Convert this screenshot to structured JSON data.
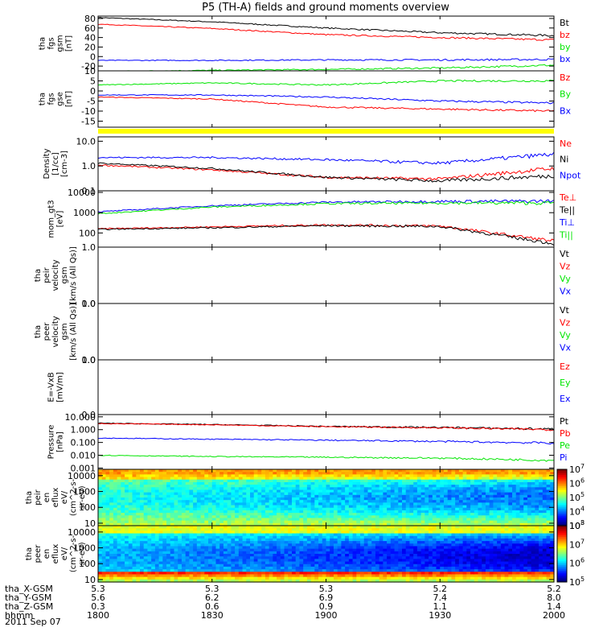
{
  "title": "P5 (TH-A) fields and ground moments overview",
  "date": "2011 Sep 07",
  "colors": {
    "black": "#000000",
    "red": "#ff0000",
    "green": "#00e600",
    "blue": "#0000ff",
    "yellow": "#ffff00"
  },
  "chart_data": [
    {
      "type": "line",
      "id": "fgs_gsm",
      "ylabel_lines": [
        "tha",
        "fgs",
        "gsm",
        "[nT]"
      ],
      "ylim": [
        -30,
        85
      ],
      "yticks": [
        -20,
        0,
        20,
        40,
        60,
        80
      ],
      "ytick_labels": [
        "-20",
        "0",
        "20",
        "40",
        "60",
        "80"
      ],
      "series": [
        {
          "name": "Bt",
          "color": "black",
          "x": [
            1800,
            1830,
            1900,
            1930,
            2000
          ],
          "y": [
            82,
            73,
            60,
            50,
            44
          ]
        },
        {
          "name": "bz",
          "color": "red",
          "x": [
            1800,
            1830,
            1900,
            1930,
            2000
          ],
          "y": [
            68,
            59,
            46,
            40,
            35
          ]
        },
        {
          "name": "by",
          "color": "green",
          "x": [
            1800,
            1830,
            1900,
            1930,
            2000
          ],
          "y": [
            -31,
            -29,
            -27,
            -24,
            -18
          ]
        },
        {
          "name": "bx",
          "color": "blue",
          "x": [
            1800,
            1830,
            1900,
            1930,
            2000
          ],
          "y": [
            -8,
            -8,
            -7,
            -7,
            -6
          ]
        }
      ]
    },
    {
      "type": "line",
      "id": "fgs_gse",
      "ylabel_lines": [
        "tha",
        "fgs",
        "gse",
        "[nT]"
      ],
      "ylim": [
        -18,
        10
      ],
      "yticks": [
        -15,
        -10,
        -5,
        0,
        5,
        10
      ],
      "ytick_labels": [
        "-15",
        "-10",
        "-5",
        "0",
        "5",
        "10"
      ],
      "series": [
        {
          "name": "Bz",
          "color": "red",
          "x": [
            1800,
            1830,
            1900,
            1930,
            2000
          ],
          "y": [
            -3,
            -4,
            -8,
            -9,
            -10
          ]
        },
        {
          "name": "By",
          "color": "green",
          "x": [
            1800,
            1830,
            1900,
            1930,
            2000
          ],
          "y": [
            3,
            4,
            3,
            5,
            5
          ]
        },
        {
          "name": "Bx",
          "color": "blue",
          "x": [
            1800,
            1830,
            1900,
            1930,
            2000
          ],
          "y": [
            -2,
            -2,
            -3,
            -5,
            -6
          ]
        }
      ]
    },
    {
      "type": "line",
      "id": "density",
      "yscale": "log",
      "ylabel_lines": [
        "Density",
        "[1/cc]",
        "[cm-3]"
      ],
      "ylim": [
        0.1,
        15
      ],
      "yticks": [
        0.1,
        1.0,
        10.0
      ],
      "ytick_labels": [
        "0.1",
        "1.0",
        "10.0"
      ],
      "series": [
        {
          "name": "Ne",
          "color": "red",
          "x": [
            1800,
            1830,
            1900,
            1930,
            2000
          ],
          "y": [
            1.1,
            0.7,
            0.35,
            0.3,
            0.8
          ]
        },
        {
          "name": "Ni",
          "color": "black",
          "x": [
            1800,
            1830,
            1900,
            1930,
            2000
          ],
          "y": [
            1.3,
            0.8,
            0.35,
            0.25,
            0.4
          ]
        },
        {
          "name": "Npot",
          "color": "blue",
          "x": [
            1800,
            1830,
            1900,
            1930,
            2000
          ],
          "y": [
            2.2,
            2.2,
            1.8,
            1.3,
            3.0
          ]
        }
      ]
    },
    {
      "type": "line",
      "id": "temperature",
      "yscale": "log",
      "ylabel_lines": [
        "mom_gt3",
        "[eV]"
      ],
      "ylim": [
        20,
        12000
      ],
      "yticks": [
        100,
        1000,
        10000
      ],
      "ytick_labels": [
        "100",
        "1000",
        "10000"
      ],
      "series": [
        {
          "name": "Te⊥",
          "color": "red",
          "x": [
            1800,
            1830,
            1900,
            1930,
            2000
          ],
          "y": [
            160,
            200,
            250,
            220,
            40
          ]
        },
        {
          "name": "Te||",
          "color": "black",
          "x": [
            1800,
            1830,
            1900,
            1930,
            2000
          ],
          "y": [
            150,
            180,
            230,
            210,
            30
          ]
        },
        {
          "name": "Ti⊥",
          "color": "blue",
          "x": [
            1800,
            1830,
            1900,
            1930,
            2000
          ],
          "y": [
            1100,
            2200,
            3300,
            3600,
            3700
          ]
        },
        {
          "name": "Ti||",
          "color": "green",
          "x": [
            1800,
            1830,
            1900,
            1930,
            2000
          ],
          "y": [
            900,
            1900,
            2800,
            3000,
            3000
          ]
        }
      ]
    },
    {
      "type": "line",
      "id": "peir_velocity",
      "ylabel_lines": [
        "tha",
        "peir",
        "velocity",
        "gsm",
        "[km/s (All Qs)]"
      ],
      "ylim": [
        0,
        1
      ],
      "yticks": [
        0,
        1
      ],
      "ytick_labels": [
        "0.0",
        "1.0"
      ],
      "series": [
        {
          "name": "Vt",
          "color": "black",
          "x": [],
          "y": []
        },
        {
          "name": "Vz",
          "color": "red",
          "x": [],
          "y": []
        },
        {
          "name": "Vy",
          "color": "green",
          "x": [],
          "y": []
        },
        {
          "name": "Vx",
          "color": "blue",
          "x": [],
          "y": []
        }
      ]
    },
    {
      "type": "line",
      "id": "peer_velocity",
      "ylabel_lines": [
        "tha",
        "peer",
        "velocity",
        "gsm",
        "[km/s (All Qs)]"
      ],
      "ylim": [
        0,
        1
      ],
      "yticks": [
        0,
        1
      ],
      "ytick_labels": [
        "0.0",
        "1.0"
      ],
      "series": [
        {
          "name": "Vt",
          "color": "black",
          "x": [],
          "y": []
        },
        {
          "name": "Vz",
          "color": "red",
          "x": [],
          "y": []
        },
        {
          "name": "Vy",
          "color": "green",
          "x": [],
          "y": []
        },
        {
          "name": "Vx",
          "color": "blue",
          "x": [],
          "y": []
        }
      ]
    },
    {
      "type": "line",
      "id": "efield",
      "ylabel_lines": [
        "E=-VxB",
        "[mV/m]"
      ],
      "ylim": [
        0,
        1
      ],
      "yticks": [
        0,
        1
      ],
      "ytick_labels": [
        "0.0",
        "1.0"
      ],
      "series": [
        {
          "name": "Ez",
          "color": "red",
          "x": [],
          "y": []
        },
        {
          "name": "Ey",
          "color": "green",
          "x": [],
          "y": []
        },
        {
          "name": "Ex",
          "color": "blue",
          "x": [],
          "y": []
        }
      ]
    },
    {
      "type": "line",
      "id": "pressure",
      "yscale": "log",
      "ylabel_lines": [
        "Pressure",
        "[nPa]"
      ],
      "ylim": [
        0.0008,
        15
      ],
      "yticks": [
        0.001,
        0.01,
        0.1,
        1,
        10
      ],
      "ytick_labels": [
        "0.001",
        "0.010",
        "0.100",
        "1.000",
        "10.000"
      ],
      "series": [
        {
          "name": "Pt",
          "color": "black",
          "x": [
            1800,
            1830,
            1900,
            1930,
            2000
          ],
          "y": [
            3.2,
            2.5,
            1.8,
            1.5,
            1.1
          ]
        },
        {
          "name": "Pb",
          "color": "red",
          "x": [
            1800,
            1830,
            1900,
            1930,
            2000
          ],
          "y": [
            3.0,
            2.4,
            1.7,
            1.4,
            1.0
          ]
        },
        {
          "name": "Pe",
          "color": "green",
          "x": [
            1800,
            1830,
            1900,
            1930,
            2000
          ],
          "y": [
            0.01,
            0.008,
            0.007,
            0.006,
            0.004
          ]
        },
        {
          "name": "Pi",
          "color": "blue",
          "x": [
            1800,
            1830,
            1900,
            1930,
            2000
          ],
          "y": [
            0.22,
            0.18,
            0.15,
            0.12,
            0.09
          ]
        }
      ]
    },
    {
      "type": "heatmap",
      "id": "peir_spec",
      "yscale": "log",
      "ylabel_lines": [
        "tha",
        "peir",
        "en",
        "eflux",
        "eV/",
        "(cm^2-s-",
        "sr-eV)"
      ],
      "ylim": [
        7,
        25000
      ],
      "yticks": [
        10,
        100,
        1000,
        10000
      ],
      "ytick_labels": [
        "10",
        "100",
        "1000",
        "10000"
      ],
      "colorbar": {
        "min_exp": 3,
        "max_exp": 7,
        "tick_exps": [
          3,
          4,
          5,
          6,
          7
        ],
        "base": "10"
      }
    },
    {
      "type": "heatmap",
      "id": "peer_spec",
      "yscale": "log",
      "ylabel_lines": [
        "tha",
        "peer",
        "en",
        "eflux",
        "eV/",
        "(cm^2-s-",
        "sr-eV)"
      ],
      "ylim": [
        7,
        25000
      ],
      "yticks": [
        10,
        100,
        1000,
        10000
      ],
      "ytick_labels": [
        "10",
        "100",
        "1000",
        "10000"
      ],
      "colorbar": {
        "min_exp": 5,
        "max_exp": 8,
        "tick_exps": [
          5,
          6,
          7,
          8
        ],
        "base": "10"
      }
    }
  ],
  "x_axis": {
    "xlim": [
      1800,
      2000
    ],
    "ticks": [
      1800,
      1830,
      1900,
      1930,
      2000
    ],
    "row_labels": [
      "tha_X-GSM",
      "tha_Y-GSM",
      "tha_Z-GSM",
      "hhmm"
    ],
    "rows": [
      [
        "5.3",
        "5.3",
        "5.3",
        "5.2",
        "5.2"
      ],
      [
        "5.6",
        "6.2",
        "6.9",
        "7.4",
        "8.0"
      ],
      [
        "0.3",
        "0.6",
        "0.9",
        "1.1",
        "1.4"
      ],
      [
        "1800",
        "1830",
        "1900",
        "1930",
        "2000"
      ]
    ]
  }
}
